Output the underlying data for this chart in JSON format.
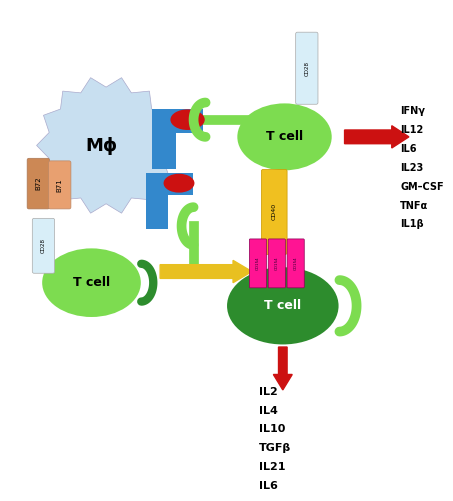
{
  "bg_color": "#ffffff",
  "macrophage_color": "#c8dff0",
  "t_cell_light_color": "#7ddc50",
  "t_cell_dark_color": "#2d8c2d",
  "blue_receptor_color": "#3388cc",
  "red_oval_color": "#cc1111",
  "cd154_color": "#ff1493",
  "cd40_color": "#f0c020",
  "cd28_tube_color": "#d8eef8",
  "b71_color": "#e8a070",
  "b72_color": "#cc8855",
  "arrow_red_color": "#cc1111",
  "arrow_yellow_color": "#e8c020",
  "macrophage_label": "Mϕ",
  "tcell_upper_label": "T cell",
  "tcell_lower_dark_label": "T cell",
  "tcell_lower_light_label": "T cell",
  "right_labels": [
    "IFNγ",
    "IL12",
    "IL6",
    "IL23",
    "GM–CSF",
    "TNFα",
    "IL1β"
  ],
  "bottom_labels": [
    "IL2",
    "IL4",
    "IL10",
    "TGFβ",
    "IL21",
    "IL6"
  ],
  "cd40_label": "CD40",
  "cd154_label": "CD154",
  "cd28_upper_label": "CD28",
  "cd28_lower_label": "CD28",
  "b71_label": "B71",
  "b72_label": "B72"
}
